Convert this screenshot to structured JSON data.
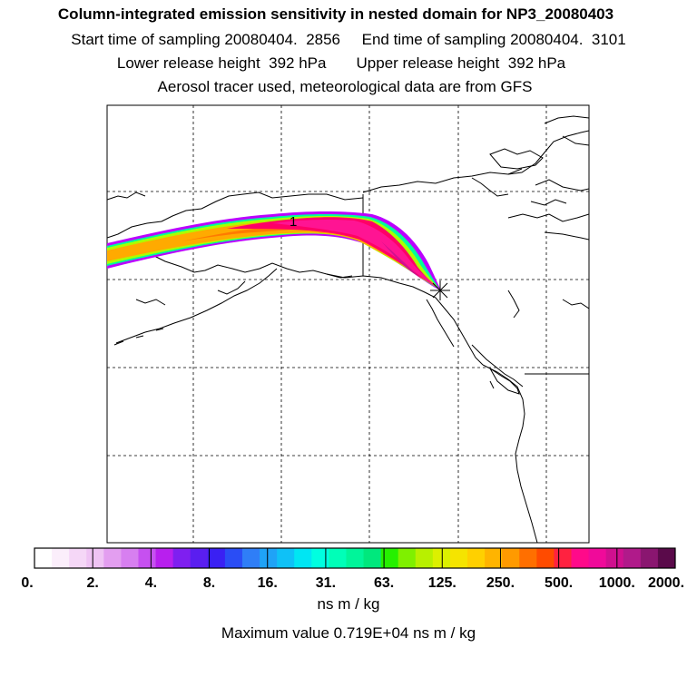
{
  "header": {
    "title": "Column-integrated emission sensitivity in nested domain for NP3_20080403",
    "sampling": "Start time of sampling 20080404.  2856     End time of sampling 20080404.  3101",
    "release": "Lower release height  392 hPa       Upper release height  392 hPa",
    "tracer": "Aerosol tracer used, meteorological data are from GFS"
  },
  "map": {
    "plume_label": "1",
    "release_marker": "star",
    "colors": {
      "land_outline": "#000000",
      "grid": "#000000",
      "plume_core": "#ff1493",
      "plume_high": "#ff0066",
      "plume_mid": "#ffaa00",
      "plume_low": "#aaff00",
      "plume_edge": "#00ff99",
      "plume_fringe": "#bb00ff"
    }
  },
  "colorbar": {
    "tick_labels": [
      "0.",
      "2.",
      "4.",
      "8.",
      "16.",
      "31.",
      "63.",
      "125.",
      "250.",
      "500.",
      "1000.",
      "2000."
    ],
    "colors": [
      "#ffffff",
      "#fbeefb",
      "#f5d7f7",
      "#efc3f4",
      "#e39ef0",
      "#d77ff0",
      "#c650f0",
      "#b81fee",
      "#7f1ff0",
      "#5a1ef0",
      "#3a20f3",
      "#2a4df5",
      "#2f7ef7",
      "#1fa3f7",
      "#0fc1f7",
      "#00e6f3",
      "#00ffe0",
      "#00ffb8",
      "#00f59a",
      "#00e87d",
      "#25f000",
      "#7ff000",
      "#b8f000",
      "#dcf000",
      "#f5e400",
      "#ffd000",
      "#ffb400",
      "#ff9a00",
      "#ff6f00",
      "#ff4b00",
      "#ff2240",
      "#ff0a8a",
      "#f00a9a",
      "#d0108f",
      "#b01a8a",
      "#8a1670",
      "#5a0a4a"
    ],
    "units": "ns m / kg",
    "max_value": "Maximum value  0.719E+04 ns m / kg"
  }
}
